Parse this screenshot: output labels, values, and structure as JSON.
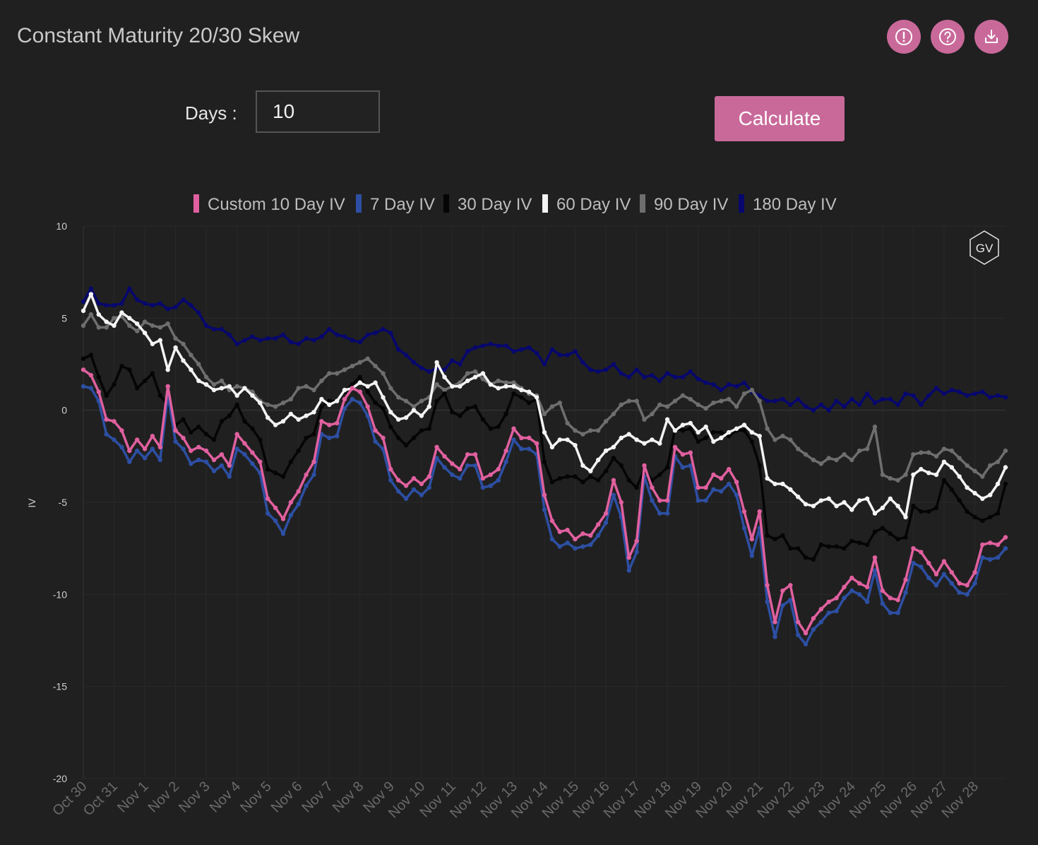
{
  "header": {
    "title": "Constant Maturity 20/30 Skew",
    "icons": [
      "info-icon",
      "help-icon",
      "download-icon"
    ]
  },
  "controls": {
    "days_label": "Days :",
    "days_value": "10",
    "calculate_label": "Calculate"
  },
  "colors": {
    "accent": "#c9699a",
    "background": "#202020"
  },
  "chart_data": {
    "type": "line",
    "title": "",
    "ylabel": "IV",
    "xlabel": "",
    "ylim": [
      -20,
      10
    ],
    "yticks": [
      10,
      5,
      0,
      -5,
      -10,
      -15,
      -20
    ],
    "grid": true,
    "legend_position": "top-center",
    "categories": [
      "Oct 30",
      "Oct 31",
      "Nov 1",
      "Nov 2",
      "Nov 3",
      "Nov 4",
      "Nov 5",
      "Nov 6",
      "Nov 7",
      "Nov 8",
      "Nov 9",
      "Nov 10",
      "Nov 11",
      "Nov 12",
      "Nov 13",
      "Nov 14",
      "Nov 15",
      "Nov 16",
      "Nov 17",
      "Nov 18",
      "Nov 19",
      "Nov 20",
      "Nov 21",
      "Nov 22",
      "Nov 23",
      "Nov 24",
      "Nov 25",
      "Nov 26",
      "Nov 27",
      "Nov 28"
    ],
    "x": [
      0,
      0.25,
      0.5,
      0.75,
      1,
      1.25,
      1.5,
      1.75,
      2,
      2.25,
      2.5,
      2.75,
      3,
      3.25,
      3.5,
      3.75,
      4,
      4.25,
      4.5,
      4.75,
      5,
      5.25,
      5.5,
      5.75,
      6,
      6.25,
      6.5,
      6.75,
      7,
      7.25,
      7.5,
      7.75,
      8,
      8.25,
      8.5,
      8.75,
      9,
      9.25,
      9.5,
      9.75,
      10,
      10.25,
      10.5,
      10.75,
      11,
      11.25,
      11.5,
      11.75,
      12,
      12.25,
      12.5,
      12.75,
      13,
      13.25,
      13.5,
      13.75,
      14,
      14.25,
      14.5,
      14.75,
      15,
      15.25,
      15.5,
      15.75,
      16,
      16.25,
      16.5,
      16.75,
      17,
      17.25,
      17.5,
      17.75,
      18,
      18.25,
      18.5,
      18.75,
      19,
      19.25,
      19.5,
      19.75,
      20,
      20.25,
      20.5,
      20.75,
      21,
      21.25,
      21.5,
      21.75,
      22,
      22.25,
      22.5,
      22.75,
      23,
      23.25,
      23.5,
      23.75,
      24,
      24.25,
      24.5,
      24.75,
      25,
      25.25,
      25.5,
      25.75,
      26,
      26.25,
      26.5,
      26.75,
      27,
      27.25,
      27.5,
      27.75,
      28,
      28.25,
      28.5,
      28.75,
      29,
      29.25,
      29.5,
      29.75,
      30
    ],
    "series": [
      {
        "name": "Custom 10 Day IV",
        "color": "#e0609f",
        "values": [
          2.2,
          1.9,
          1,
          -0.5,
          -0.6,
          -1.1,
          -2.2,
          -1.6,
          -2.1,
          -1.4,
          -2.0,
          1.3,
          -1.1,
          -1.5,
          -2.2,
          -2.0,
          -2.2,
          -2.7,
          -2.4,
          -3.0,
          -1.3,
          -1.8,
          -2.3,
          -2.8,
          -4.8,
          -5.3,
          -5.9,
          -5.0,
          -4.4,
          -3.5,
          -2.8,
          -0.6,
          -0.8,
          -0.7,
          0.6,
          1.2,
          1.0,
          0.2,
          -1.1,
          -1.5,
          -3.2,
          -3.8,
          -4.1,
          -3.7,
          -4.0,
          -3.6,
          -2.0,
          -2.5,
          -2.9,
          -3.2,
          -2.4,
          -2.4,
          -3.7,
          -3.5,
          -3.2,
          -2.2,
          -1.0,
          -1.5,
          -1.5,
          -1.8,
          -4.6,
          -6.0,
          -6.6,
          -6.5,
          -7.0,
          -6.7,
          -6.8,
          -6.2,
          -5.6,
          -3.8,
          -5.0,
          -8.0,
          -7.1,
          -3.0,
          -4.2,
          -4.9,
          -4.9,
          -2.0,
          -2.4,
          -2.3,
          -4.2,
          -4.2,
          -3.5,
          -3.7,
          -3.2,
          -3.9,
          -5.5,
          -7.0,
          -5.5,
          -9.5,
          -11.5,
          -9.8,
          -9.5,
          -11.5,
          -12.1,
          -11.3,
          -10.8,
          -10.4,
          -10.2,
          -9.6,
          -9.1,
          -9.4,
          -9.6,
          -8.0,
          -9.8,
          -10.2,
          -10.3,
          -9.2,
          -7.5,
          -7.7,
          -8.3,
          -8.9,
          -8.2,
          -8.8,
          -9.4,
          -9.5,
          -8.8,
          -7.3,
          -7.2,
          -7.3,
          -6.9
        ]
      },
      {
        "name": "7 Day IV",
        "color": "#2d4fa3",
        "values": [
          1.3,
          1.2,
          0.5,
          -1.3,
          -1.6,
          -2.0,
          -2.8,
          -2.2,
          -2.6,
          -2.1,
          -2.7,
          0.8,
          -1.7,
          -2.1,
          -2.9,
          -2.7,
          -2.8,
          -3.3,
          -3.0,
          -3.6,
          -2.1,
          -2.4,
          -2.9,
          -3.4,
          -5.6,
          -6.0,
          -6.7,
          -5.7,
          -5.1,
          -4.1,
          -3.5,
          -1.3,
          -1.5,
          -1.4,
          0.1,
          0.6,
          0.4,
          -0.3,
          -1.7,
          -2.1,
          -3.8,
          -4.4,
          -4.8,
          -4.3,
          -4.6,
          -4.2,
          -2.6,
          -3.1,
          -3.5,
          -3.7,
          -3.0,
          -3.0,
          -4.2,
          -4.1,
          -3.8,
          -2.8,
          -1.6,
          -2.1,
          -2.1,
          -2.4,
          -5.4,
          -7.0,
          -7.4,
          -7.2,
          -7.5,
          -7.4,
          -7.3,
          -6.8,
          -6.1,
          -4.6,
          -5.8,
          -8.7,
          -7.7,
          -3.6,
          -4.9,
          -5.6,
          -5.6,
          -2.5,
          -3.1,
          -3.0,
          -4.9,
          -4.9,
          -4.3,
          -4.4,
          -4.0,
          -4.6,
          -6.4,
          -7.9,
          -6.4,
          -10.4,
          -12.3,
          -10.6,
          -10.3,
          -12.2,
          -12.7,
          -11.9,
          -11.5,
          -11.0,
          -10.9,
          -10.2,
          -9.8,
          -10.0,
          -10.4,
          -8.7,
          -10.5,
          -11.0,
          -11.0,
          -9.9,
          -8.3,
          -8.5,
          -9.1,
          -9.5,
          -8.9,
          -9.4,
          -9.9,
          -10.0,
          -9.4,
          -8.0,
          -8.1,
          -8.0,
          -7.5
        ]
      },
      {
        "name": "30 Day IV",
        "color": "#050505",
        "values": [
          2.8,
          3.0,
          1.8,
          0.8,
          1.4,
          2.4,
          2.2,
          1.2,
          1.6,
          2.0,
          0.8,
          0.3,
          -0.8,
          -0.5,
          -1.2,
          -0.9,
          -1.3,
          -1.6,
          -0.6,
          -0.3,
          0.3,
          -0.6,
          -1.0,
          -1.6,
          -3.2,
          -3.4,
          -3.6,
          -2.8,
          -2.2,
          -1.5,
          -1.3,
          0.2,
          0.5,
          0.5,
          1.0,
          1.4,
          1.8,
          1.0,
          0.4,
          0.1,
          -0.9,
          -1.5,
          -1.9,
          -1.5,
          -1.1,
          -1.0,
          0.5,
          0.9,
          -0.1,
          -0.3,
          0.1,
          0.2,
          -0.5,
          -1.0,
          -0.9,
          -0.2,
          0.9,
          0.7,
          0.4,
          0.6,
          -2.8,
          -3.9,
          -3.7,
          -3.6,
          -3.6,
          -3.9,
          -3.6,
          -3.8,
          -3.3,
          -2.6,
          -3.0,
          -3.8,
          -4.2,
          -3.2,
          -3.8,
          -3.5,
          -3.1,
          -1.0,
          -1.1,
          -1.0,
          -1.7,
          -1.5,
          -1.2,
          -1.2,
          -1.4,
          -1.1,
          -1.1,
          -1.7,
          -3.0,
          -6.8,
          -7.0,
          -6.8,
          -7.5,
          -7.5,
          -8.0,
          -8.1,
          -7.3,
          -7.4,
          -7.4,
          -7.5,
          -7.1,
          -7.2,
          -7.3,
          -6.6,
          -6.4,
          -6.7,
          -7.0,
          -6.9,
          -5.2,
          -5.5,
          -5.5,
          -5.3,
          -3.8,
          -4.3,
          -4.9,
          -5.5,
          -5.8,
          -6.0,
          -5.8,
          -5.6,
          -4.0
        ]
      },
      {
        "name": "60 Day IV",
        "color": "#f4f4f4",
        "values": [
          5.4,
          6.3,
          5.2,
          4.8,
          4.6,
          5.3,
          5.0,
          4.7,
          4.2,
          3.6,
          3.8,
          2.2,
          3.4,
          2.7,
          2.2,
          1.6,
          1.4,
          1.1,
          1.2,
          1.3,
          0.8,
          1.2,
          0.8,
          0.4,
          -0.4,
          -0.8,
          -0.6,
          -0.2,
          -0.5,
          -0.3,
          -0.1,
          0.6,
          0.3,
          0.5,
          1.1,
          1.2,
          1.5,
          1.3,
          1.5,
          0.7,
          -0.1,
          -0.5,
          -0.4,
          0.0,
          -0.3,
          0.2,
          2.6,
          1.8,
          1.3,
          1.3,
          1.6,
          1.8,
          2.0,
          1.4,
          1.2,
          1.3,
          1.3,
          1.1,
          1.0,
          0.7,
          -1.2,
          -2.0,
          -1.6,
          -1.6,
          -1.9,
          -3.0,
          -3.3,
          -2.7,
          -2.2,
          -2.0,
          -1.5,
          -1.3,
          -1.6,
          -1.8,
          -1.6,
          -1.8,
          -0.5,
          -1.1,
          -0.8,
          -0.7,
          -1.2,
          -0.9,
          -1.7,
          -1.5,
          -1.2,
          -1.0,
          -0.8,
          -1.2,
          -1.4,
          -3.7,
          -4.0,
          -4.0,
          -4.3,
          -4.7,
          -5.1,
          -5.2,
          -4.9,
          -4.8,
          -5.2,
          -5.0,
          -5.4,
          -4.9,
          -4.8,
          -5.6,
          -5.3,
          -4.8,
          -5.2,
          -5.8,
          -3.5,
          -3.2,
          -3.4,
          -3.5,
          -2.8,
          -3.1,
          -3.6,
          -4.2,
          -4.5,
          -4.8,
          -4.6,
          -4.0,
          -3.1
        ]
      },
      {
        "name": "90 Day IV",
        "color": "#6e6e6e",
        "values": [
          4.6,
          5.2,
          4.5,
          4.5,
          5.0,
          5.1,
          4.6,
          4.3,
          4.8,
          4.6,
          4.5,
          4.7,
          3.9,
          3.6,
          3.0,
          2.5,
          1.8,
          1.4,
          1.6,
          1.1,
          1.3,
          1.2,
          1.0,
          0.5,
          0.3,
          0.2,
          0.4,
          0.6,
          1.2,
          1.3,
          1.1,
          1.6,
          2.0,
          2.0,
          2.2,
          2.4,
          2.6,
          2.8,
          2.4,
          2.0,
          1.2,
          0.7,
          0.5,
          0.2,
          0.5,
          0.7,
          1.4,
          1.1,
          1.3,
          1.5,
          2.0,
          2.1,
          1.7,
          1.4,
          1.6,
          1.5,
          1.5,
          1.2,
          0.9,
          0.8,
          -0.2,
          0.2,
          0.4,
          -0.7,
          -1.1,
          -1.3,
          -1.1,
          -1.1,
          -0.6,
          -0.2,
          0.3,
          0.5,
          0.5,
          -0.5,
          -0.2,
          0.3,
          0.2,
          0.5,
          0.8,
          0.6,
          0.3,
          0.1,
          0.4,
          0.5,
          0.6,
          0.2,
          0.9,
          1.1,
          0.5,
          -1.0,
          -1.6,
          -1.4,
          -1.6,
          -2.1,
          -2.4,
          -2.7,
          -2.9,
          -2.6,
          -2.7,
          -2.4,
          -2.7,
          -2.2,
          -2.1,
          -0.9,
          -3.5,
          -3.7,
          -3.8,
          -3.5,
          -2.4,
          -2.3,
          -2.3,
          -2.5,
          -2.1,
          -2.2,
          -2.6,
          -3.0,
          -3.3,
          -3.6,
          -3.0,
          -2.8,
          -2.2
        ]
      },
      {
        "name": "180 Day IV",
        "color": "#07076e",
        "values": [
          5.9,
          6.6,
          5.8,
          5.7,
          5.7,
          5.8,
          6.6,
          6.0,
          5.8,
          5.7,
          5.8,
          5.5,
          5.6,
          6.0,
          5.7,
          5.3,
          4.6,
          4.4,
          4.4,
          4.1,
          3.6,
          3.8,
          4.0,
          3.8,
          3.9,
          3.9,
          4.1,
          3.7,
          3.6,
          3.9,
          3.8,
          4.0,
          4.4,
          4.1,
          4.0,
          3.8,
          3.7,
          4.1,
          4.2,
          4.4,
          4.2,
          3.3,
          3.0,
          2.6,
          2.3,
          2.1,
          2.3,
          2.2,
          2.7,
          2.5,
          3.2,
          3.4,
          3.5,
          3.6,
          3.5,
          3.5,
          3.2,
          3.3,
          3.4,
          3.1,
          2.5,
          3.3,
          3.0,
          3.0,
          3.2,
          2.6,
          2.2,
          2.1,
          2.2,
          2.5,
          2.0,
          1.8,
          2.2,
          1.8,
          1.9,
          1.6,
          2.0,
          1.8,
          1.8,
          2.1,
          1.7,
          1.5,
          1.4,
          1.1,
          1.4,
          1.3,
          1.5,
          1.0,
          0.8,
          0.5,
          0.5,
          0.6,
          0.3,
          0.6,
          0.2,
          0.0,
          0.3,
          0.0,
          0.5,
          0.2,
          0.6,
          0.3,
          0.9,
          0.4,
          0.6,
          0.6,
          0.3,
          0.9,
          0.8,
          0.3,
          0.8,
          1.2,
          0.9,
          1.1,
          1.0,
          0.8,
          0.9,
          1.0,
          0.7,
          0.8,
          0.7
        ]
      }
    ],
    "annotations": [
      "GV"
    ]
  }
}
